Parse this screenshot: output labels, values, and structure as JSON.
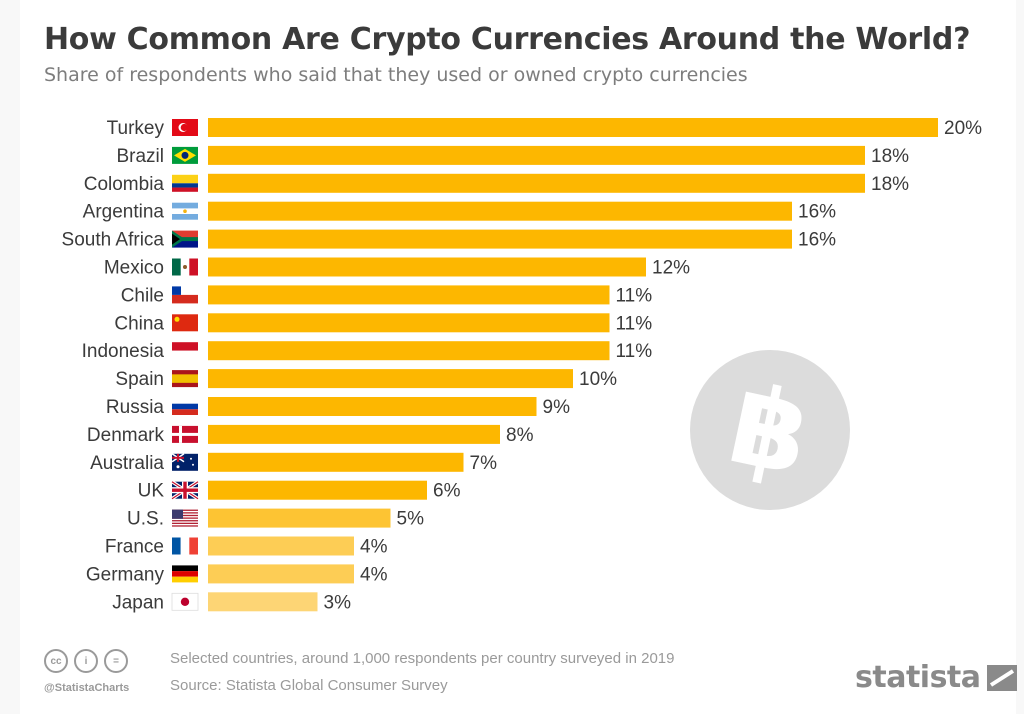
{
  "header": {
    "title": "How Common Are Crypto Currencies Around the World?",
    "subtitle": "Share of respondents who said that they used or owned crypto currencies"
  },
  "chart_data": {
    "type": "bar",
    "orientation": "horizontal",
    "categories": [
      "Turkey",
      "Brazil",
      "Colombia",
      "Argentina",
      "South Africa",
      "Mexico",
      "Chile",
      "China",
      "Indonesia",
      "Spain",
      "Russia",
      "Denmark",
      "Australia",
      "UK",
      "U.S.",
      "France",
      "Germany",
      "Japan"
    ],
    "values": [
      20,
      18,
      18,
      16,
      16,
      12,
      11,
      11,
      11,
      10,
      9,
      8,
      7,
      6,
      5,
      4,
      4,
      3
    ],
    "value_labels": [
      "20%",
      "18%",
      "18%",
      "16%",
      "16%",
      "12%",
      "11%",
      "11%",
      "11%",
      "10%",
      "9%",
      "8%",
      "7%",
      "6%",
      "5%",
      "4%",
      "4%",
      "3%"
    ],
    "flag_icons": [
      "flag-turkey-icon",
      "flag-brazil-icon",
      "flag-colombia-icon",
      "flag-argentina-icon",
      "flag-south-africa-icon",
      "flag-mexico-icon",
      "flag-chile-icon",
      "flag-china-icon",
      "flag-indonesia-icon",
      "flag-spain-icon",
      "flag-russia-icon",
      "flag-denmark-icon",
      "flag-australia-icon",
      "flag-uk-icon",
      "flag-us-icon",
      "flag-france-icon",
      "flag-germany-icon",
      "flag-japan-icon"
    ],
    "xlim": [
      0,
      20
    ],
    "grid": false,
    "legend": "none",
    "bar_color": "#FDB700",
    "bar_colors_faded": [
      "#FDC433",
      "#FDCD55",
      "#FDCD55",
      "#FDD575"
    ],
    "watermark_icon": "bitcoin-icon"
  },
  "footer": {
    "note": "Selected countries, around 1,000 respondents per country surveyed in 2019",
    "source": "Source: Statista Global Consumer Survey",
    "handle": "@StatistaCharts",
    "brand": "statista",
    "license_icons": [
      "cc-icon",
      "by-icon",
      "nd-icon"
    ],
    "license_glyphs": [
      "cc",
      "i",
      "="
    ]
  }
}
